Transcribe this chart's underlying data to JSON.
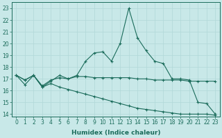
{
  "xlabel": "Humidex (Indice chaleur)",
  "bg_color": "#c8e8e8",
  "line_color": "#1a6b5a",
  "grid_color": "#b0d8d8",
  "xlim": [
    -0.5,
    23.5
  ],
  "ylim": [
    13.8,
    23.5
  ],
  "yticks": [
    14,
    15,
    16,
    17,
    18,
    19,
    20,
    21,
    22,
    23
  ],
  "xticks": [
    0,
    1,
    2,
    3,
    4,
    5,
    6,
    7,
    8,
    9,
    10,
    11,
    12,
    13,
    14,
    15,
    16,
    17,
    18,
    19,
    20,
    21,
    22,
    23
  ],
  "s1_x": [
    0,
    1,
    2,
    3,
    4,
    5,
    6,
    7,
    8,
    9,
    10,
    11,
    12,
    13,
    14,
    15,
    16,
    17,
    18,
    19,
    20,
    21,
    22,
    23
  ],
  "s1_y": [
    17.3,
    16.9,
    17.3,
    16.3,
    16.8,
    17.3,
    17.0,
    17.3,
    18.5,
    19.2,
    19.3,
    18.5,
    20.0,
    23.0,
    20.5,
    19.4,
    18.5,
    18.3,
    17.0,
    17.0,
    16.9,
    15.0,
    14.9,
    14.0
  ],
  "s2_x": [
    0,
    1,
    2,
    3,
    4,
    5,
    6,
    7,
    8,
    9,
    10,
    11,
    12,
    13,
    14,
    15,
    16,
    17,
    18,
    19,
    20,
    21,
    22,
    23
  ],
  "s2_y": [
    17.3,
    16.9,
    17.3,
    16.4,
    16.9,
    17.1,
    17.0,
    17.2,
    17.2,
    17.1,
    17.1,
    17.1,
    17.1,
    17.1,
    17.0,
    17.0,
    16.9,
    16.9,
    16.9,
    16.9,
    16.8,
    16.8,
    16.8,
    16.8
  ],
  "s3_x": [
    0,
    1,
    2,
    3,
    4,
    5,
    6,
    7,
    8,
    9,
    10,
    11,
    12,
    13,
    14,
    15,
    16,
    17,
    18,
    19,
    20,
    21,
    22,
    23
  ],
  "s3_y": [
    17.3,
    16.5,
    17.3,
    16.3,
    16.6,
    16.3,
    16.1,
    15.9,
    15.7,
    15.5,
    15.3,
    15.1,
    14.9,
    14.7,
    14.5,
    14.4,
    14.3,
    14.2,
    14.1,
    14.0,
    14.0,
    14.0,
    14.0,
    13.9
  ],
  "tick_fontsize": 5.5,
  "xlabel_fontsize": 6.5
}
